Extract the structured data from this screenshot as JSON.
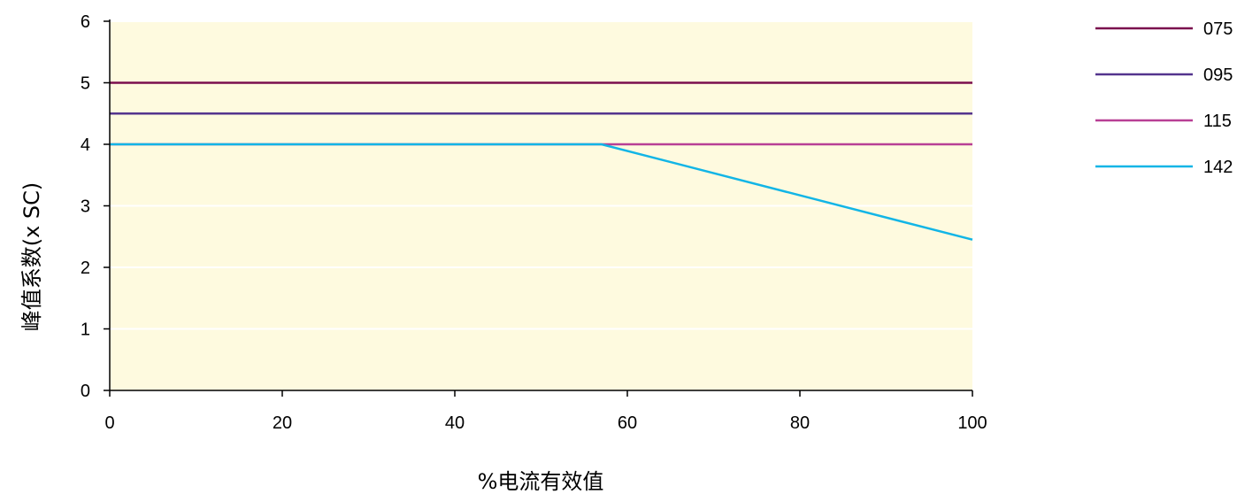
{
  "chart_data": {
    "type": "line",
    "xlabel": "%电流有效值",
    "ylabel": "峰值系数(x SC)",
    "xlim": [
      0,
      100
    ],
    "ylim": [
      0,
      6
    ],
    "x_ticks": [
      0,
      20,
      40,
      60,
      80,
      100
    ],
    "y_ticks": [
      0,
      1,
      2,
      3,
      4,
      5,
      6
    ],
    "grid": "horizontal",
    "plot_background": "#fefadf",
    "legend_position": "right",
    "series": [
      {
        "name": "075",
        "color": "#7a0e4e",
        "x": [
          0,
          100
        ],
        "y": [
          5,
          5
        ]
      },
      {
        "name": "095",
        "color": "#54348e",
        "x": [
          0,
          100
        ],
        "y": [
          4.5,
          4.5
        ]
      },
      {
        "name": "115",
        "color": "#b83f95",
        "x": [
          0,
          100
        ],
        "y": [
          4,
          4
        ]
      },
      {
        "name": "142",
        "color": "#12b5e6",
        "x": [
          0,
          57,
          100
        ],
        "y": [
          4,
          4,
          2.45
        ]
      }
    ]
  }
}
